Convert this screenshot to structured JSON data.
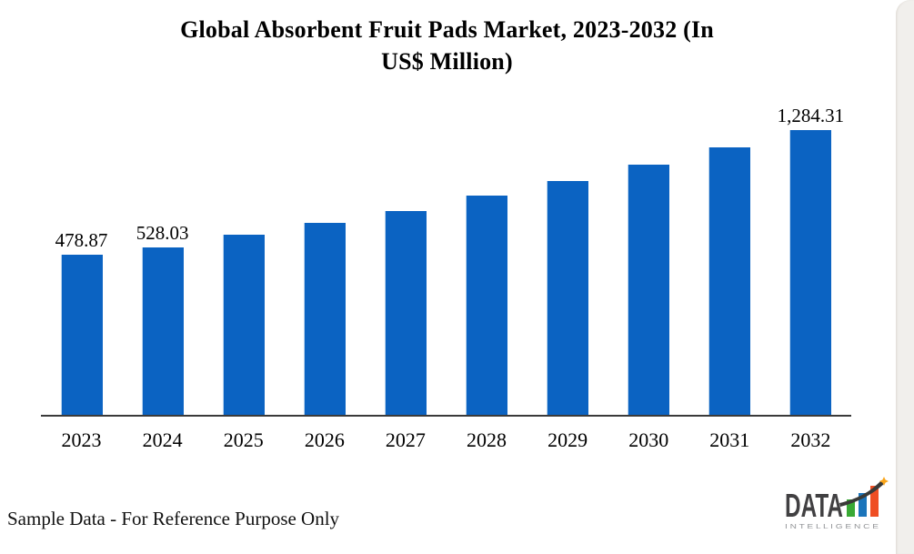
{
  "chart_data": {
    "type": "bar",
    "title": "Global Absorbent Fruit Pads Market, 2023-2032 (In US$ Million)",
    "title_lines": [
      "Global Absorbent Fruit Pads Market, 2023-2032 (In",
      "US$ Million)"
    ],
    "categories": [
      "2023",
      "2024",
      "2025",
      "2026",
      "2027",
      "2028",
      "2029",
      "2030",
      "2031",
      "2032"
    ],
    "values": [
      478.87,
      528.03,
      608.1,
      684.7,
      761.4,
      861.6,
      955.9,
      1062.0,
      1174.0,
      1284.31
    ],
    "data_labels": [
      "478.87",
      "528.03",
      "",
      "",
      "",
      "",
      "",
      "",
      "",
      "1,284.31"
    ],
    "xlabel": "",
    "ylabel": "",
    "unit": "US$ Million",
    "legend": false,
    "grid": false,
    "value_axis_visible": false,
    "bar_color": "#0b63c2",
    "axis_line_color": "#3a3a3a"
  },
  "footer": {
    "note": "Sample Data - For Reference Purpose Only"
  },
  "logo": {
    "text": "DATA",
    "subtext": "I N T E L L I G E N C E",
    "colors": {
      "text": "#414042",
      "subtext": "#939598",
      "bar_green": "#39a935",
      "bar_blue": "#1b75bb",
      "bar_orange": "#ef4e23",
      "swoosh": "#3a3a38",
      "star": "#f9a51a"
    }
  }
}
